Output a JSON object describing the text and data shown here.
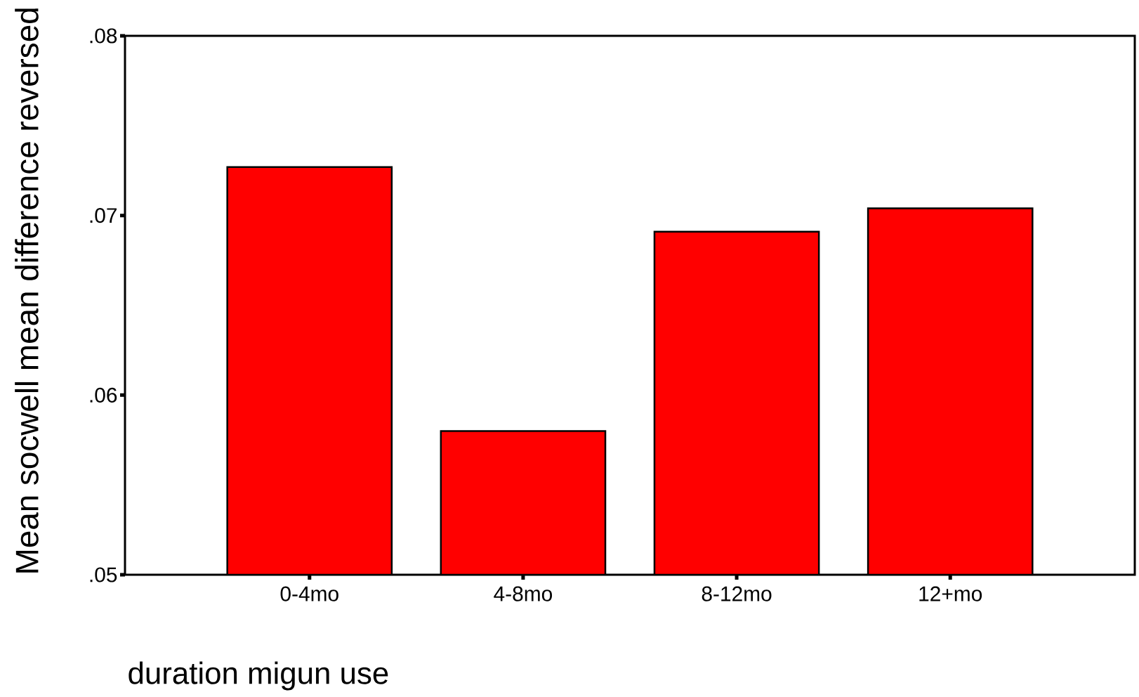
{
  "chart_data": {
    "type": "bar",
    "xlabel": "duration migun use",
    "ylabel": "Mean socwell mean difference reversed",
    "categories": [
      "0-4mo",
      "4-8mo",
      "8-12mo",
      "12+mo"
    ],
    "values": [
      0.0727,
      0.058,
      0.0691,
      0.0704
    ],
    "color": "#ff0000",
    "ylim": [
      0.05,
      0.08
    ],
    "yticks": [
      {
        "value": 0.05,
        "label": ".05"
      },
      {
        "value": 0.06,
        "label": ".06"
      },
      {
        "value": 0.07,
        "label": ".07"
      },
      {
        "value": 0.08,
        "label": ".08"
      }
    ]
  }
}
